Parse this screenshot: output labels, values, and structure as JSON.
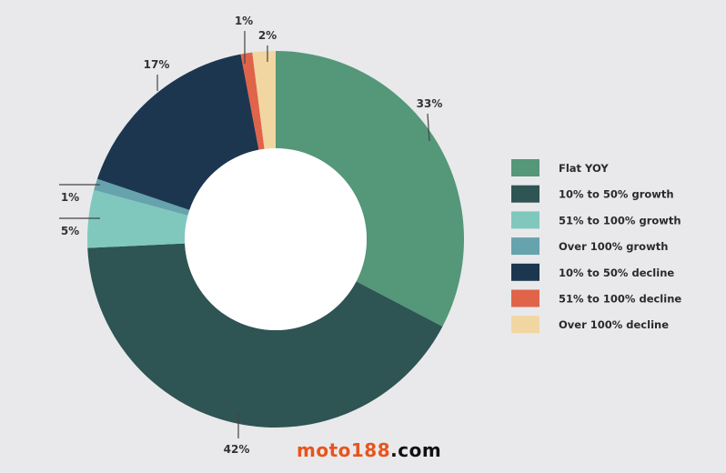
{
  "chart_data": {
    "type": "pie",
    "donut": true,
    "start": "top",
    "direction": "clockwise",
    "legend_position": "right",
    "slices": [
      {
        "name": "Flat YOY",
        "value": 33,
        "label": "33%",
        "color": "#559779"
      },
      {
        "name": "10% to 50% growth",
        "value": 42,
        "label": "42%",
        "color": "#2e5453"
      },
      {
        "name": "51% to 100% growth",
        "value": 5,
        "label": "5%",
        "color": "#80c8bd"
      },
      {
        "name": "Over 100% growth",
        "value": 1,
        "label": "1%",
        "color": "#66a3ac"
      },
      {
        "name": "10% to 50% decline",
        "value": 17,
        "label": "17%",
        "color": "#1c3650"
      },
      {
        "name": "51% to 100% decline",
        "value": 1,
        "label": "1%",
        "color": "#e0644a"
      },
      {
        "name": "Over 100% decline",
        "value": 2,
        "label": "2%",
        "color": "#f1d6a2"
      }
    ]
  },
  "watermark": {
    "part1": "moto188",
    "part2": ".com"
  }
}
